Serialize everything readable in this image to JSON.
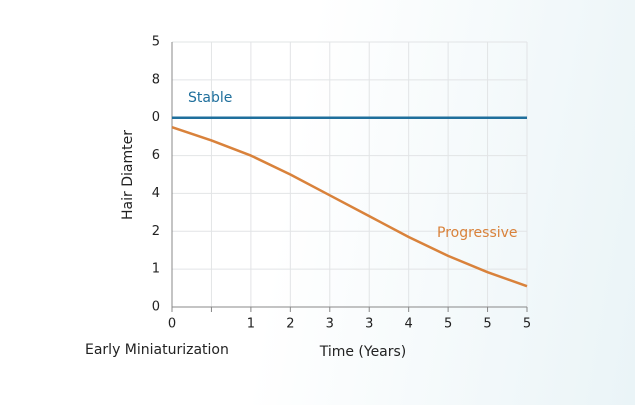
{
  "chart_data": {
    "type": "line",
    "x_label": "Time (Years)",
    "y_label": "Hair Diamter",
    "annotations": [
      "Stable",
      "Progressive",
      "Early Miniaturization"
    ],
    "x": [
      0,
      1,
      2,
      3,
      4,
      5,
      6,
      7,
      8,
      9
    ],
    "series": [
      {
        "name": "Stable",
        "color": "#1f6f9c",
        "values": [
          5,
          5,
          5,
          5,
          5,
          5,
          5,
          5,
          5,
          5
        ]
      },
      {
        "name": "Progressive",
        "color": "#d9823b",
        "values": [
          4.75,
          4.4,
          4.0,
          3.5,
          2.95,
          2.4,
          1.85,
          1.35,
          0.92,
          0.55
        ]
      }
    ],
    "xlim": [
      0,
      9
    ],
    "xticks": [
      0,
      {
        "value": 1,
        "label": null
      },
      {
        "value": 2,
        "label": "1"
      },
      {
        "value": 3,
        "label": "2"
      },
      {
        "value": 4,
        "label": "3"
      },
      {
        "value": 5,
        "label": "3"
      },
      {
        "value": 6,
        "label": "4"
      },
      {
        "value": 7,
        "label": "5"
      },
      {
        "value": 8,
        "label": "5"
      },
      {
        "value": 9,
        "label": "5"
      }
    ],
    "ylim": [
      0,
      7
    ],
    "yticks": [
      0,
      1,
      2,
      {
        "value": 3,
        "label": "4"
      },
      {
        "value": 4,
        "label": "6"
      },
      {
        "value": 5,
        "label": "0"
      },
      {
        "value": 6,
        "label": "8"
      },
      {
        "value": 7,
        "label": "5"
      }
    ],
    "grid": true
  }
}
